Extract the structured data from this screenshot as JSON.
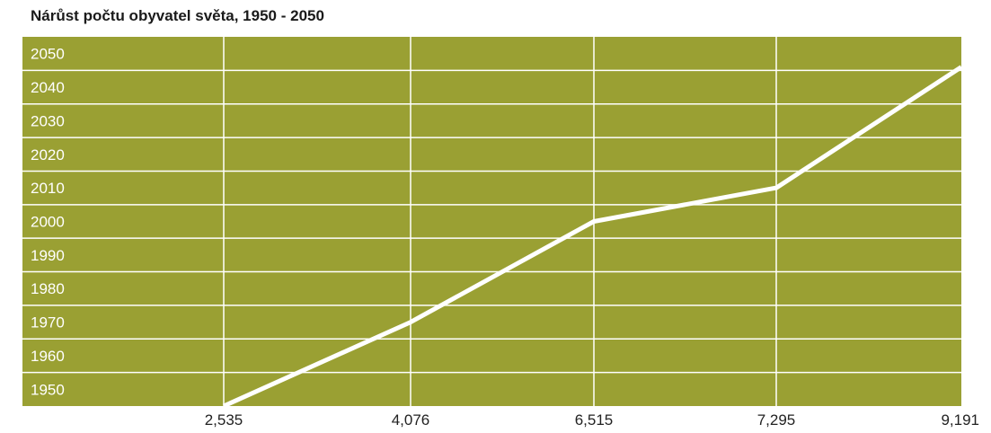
{
  "chart_data": {
    "type": "line",
    "title": "Nárůst počtu obyvatel světa, 1950 - 2050",
    "xlabel": "",
    "ylabel": "",
    "categories": [
      "2,535",
      "4,076",
      "6,515",
      "7,295",
      "9,191"
    ],
    "y_ticks": [
      "2050",
      "2040",
      "2030",
      "2020",
      "2010",
      "2000",
      "1990",
      "1980",
      "1970",
      "1960",
      "1950"
    ],
    "ylim": [
      1945,
      2055
    ],
    "series": [
      {
        "values": [
          1945,
          1970,
          2000,
          2010,
          2046
        ]
      }
    ],
    "grid": true,
    "colors": {
      "plot_background": "#9aa033",
      "grid": "#ffffff",
      "line": "#ffffff"
    }
  }
}
